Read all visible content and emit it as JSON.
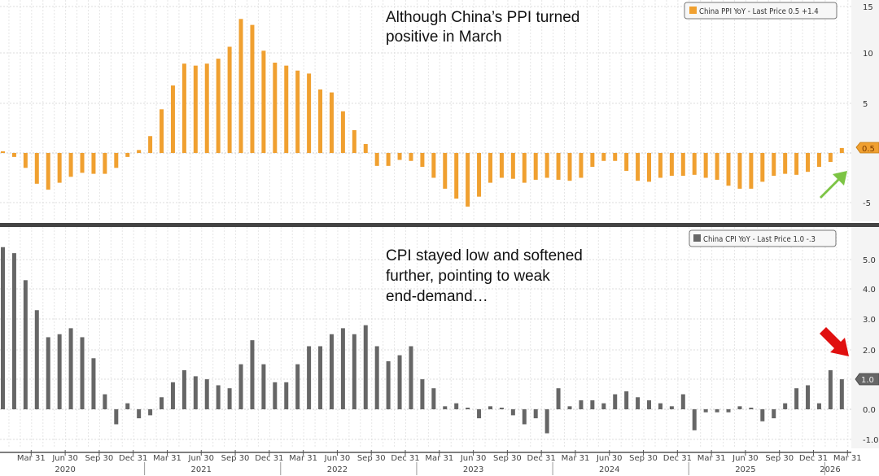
{
  "chart_data": [
    {
      "type": "bar",
      "title": "China PPI YoY",
      "legend": "China PPI YoY - Last Price 0.5  +1.4",
      "legend_placement": "top-right",
      "last_price": "0.5",
      "last_change": "+1.4",
      "color": "#f0a030",
      "badge_label": "0.5",
      "annotation": [
        "Although China’s PPI turned",
        "positive in March"
      ],
      "arrow": {
        "direction": "up-right",
        "color": "#7cc444"
      },
      "ylim": [
        -7,
        15.5
      ],
      "yticks": [
        15,
        10,
        5,
        -5
      ],
      "grid": true,
      "x_start": "2020-01",
      "series": [
        {
          "name": "China PPI YoY",
          "values": [
            0.1,
            -0.4,
            -1.5,
            -3.1,
            -3.7,
            -3.0,
            -2.4,
            -2.0,
            -2.1,
            -2.1,
            -1.5,
            -0.4,
            0.3,
            1.7,
            4.4,
            6.8,
            9.0,
            8.8,
            9.0,
            9.5,
            10.7,
            13.5,
            12.9,
            10.3,
            9.1,
            8.8,
            8.3,
            8.0,
            6.4,
            6.1,
            4.2,
            2.3,
            0.9,
            -1.3,
            -1.3,
            -0.7,
            -0.8,
            -1.4,
            -2.5,
            -3.6,
            -4.6,
            -5.4,
            -4.4,
            -3.0,
            -2.5,
            -2.6,
            -3.0,
            -2.7,
            -2.5,
            -2.7,
            -2.8,
            -2.5,
            -1.4,
            -0.8,
            -0.8,
            -1.8,
            -2.8,
            -2.9,
            -2.5,
            -2.3,
            -2.3,
            -2.2,
            -2.5,
            -2.7,
            -3.3,
            -3.6,
            -3.6,
            -2.9,
            -2.3,
            -2.1,
            -2.2,
            -1.9,
            -1.4,
            -0.9,
            0.5
          ]
        }
      ]
    },
    {
      "type": "bar",
      "title": "China CPI YoY",
      "legend": "China CPI YoY - Last Price 1.0  -.3",
      "legend_placement": "top-right",
      "last_price": "1.0",
      "last_change": "-.3",
      "color": "#666666",
      "badge_label": "1.0",
      "annotation": [
        "CPI stayed low and softened",
        "further, pointing to weak",
        "end-demand…"
      ],
      "arrow": {
        "direction": "down-right",
        "color": "#e01010"
      },
      "ylim": [
        -1.3,
        5.5
      ],
      "yticks": [
        "5.0",
        "4.0",
        "3.0",
        "2.0",
        "1.0",
        "0.0",
        "-1.0"
      ],
      "grid": true,
      "x_start": "2020-01",
      "series": [
        {
          "name": "China CPI YoY",
          "values": [
            5.4,
            5.2,
            4.3,
            3.3,
            2.4,
            2.5,
            2.7,
            2.4,
            1.7,
            0.5,
            -0.5,
            0.2,
            -0.3,
            -0.2,
            0.4,
            0.9,
            1.3,
            1.1,
            1.0,
            0.8,
            0.7,
            1.5,
            2.3,
            1.5,
            0.9,
            0.9,
            1.5,
            2.1,
            2.1,
            2.5,
            2.7,
            2.5,
            2.8,
            2.1,
            1.6,
            1.8,
            2.1,
            1.0,
            0.7,
            0.1,
            0.2,
            0.0,
            -0.3,
            0.1,
            0.0,
            -0.2,
            -0.5,
            -0.3,
            -0.8,
            0.7,
            0.1,
            0.3,
            0.3,
            0.2,
            0.5,
            0.6,
            0.4,
            0.3,
            0.2,
            0.1,
            0.5,
            -0.7,
            -0.1,
            -0.1,
            -0.1,
            0.1,
            0.0,
            -0.4,
            -0.3,
            0.2,
            0.7,
            0.8,
            0.2,
            1.3,
            1.0
          ]
        }
      ]
    }
  ],
  "x_axis": {
    "quarter_ticks": [
      "Mar 31",
      "Jun 30",
      "Sep 30",
      "Dec 31"
    ],
    "years": [
      "2020",
      "2021",
      "2022",
      "2023",
      "2024",
      "2025",
      "2026"
    ],
    "last_visible_tick": "Mar 31"
  }
}
